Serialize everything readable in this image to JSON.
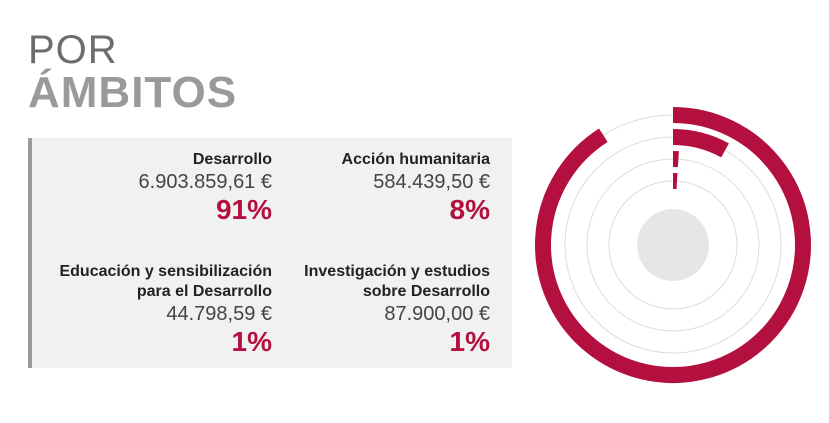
{
  "chart_data": {
    "type": "radial_bar",
    "title": "POR",
    "subtitle": "ÁMBITOS",
    "categories": [
      "Desarrollo",
      "Acción humanitaria",
      "Educación y sensibilización para el Desarrollo",
      "Investigación y estudios sobre Desarrollo"
    ],
    "amounts": [
      6903859.61,
      584439.5,
      44798.59,
      87900.0
    ],
    "amount_labels": [
      "6.903.859,61 €",
      "584.439,50 €",
      "44.798,59 €",
      "87.900,00 €"
    ],
    "values": [
      91,
      8,
      1,
      1
    ],
    "value_labels": [
      "91%",
      "8%",
      "1%",
      "1%"
    ],
    "color": "#b3103f",
    "grid": true
  }
}
